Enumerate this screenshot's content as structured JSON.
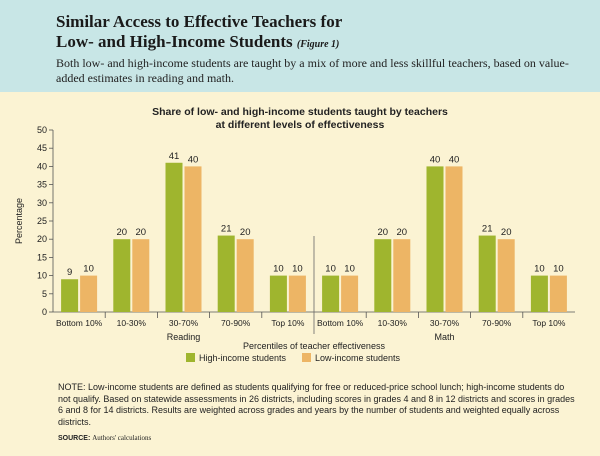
{
  "header": {
    "title_line1": "Similar Access to Effective Teachers for",
    "title_line2": "Low- and High-Income Students",
    "figure_label": "(Figure 1)",
    "subtitle": "Both low- and high-income students are taught by a mix of more and less skillful teachers, based on value-added estimates in reading and math."
  },
  "chart_data": {
    "type": "bar",
    "title_line1": "Share of low- and high-income students taught by teachers",
    "title_line2": "at different levels of effectiveness",
    "ylabel": "Percentage",
    "xlabel": "Percentiles of teacher effectiveness",
    "ylim": [
      0,
      50
    ],
    "yticks": [
      0,
      5,
      10,
      15,
      20,
      25,
      30,
      35,
      40,
      45,
      50
    ],
    "groups": [
      {
        "name": "Reading",
        "categories": [
          "Bottom 10%",
          "10-30%",
          "30-70%",
          "70-90%",
          "Top 10%"
        ]
      },
      {
        "name": "Math",
        "categories": [
          "Bottom 10%",
          "10-30%",
          "30-70%",
          "70-90%",
          "Top 10%"
        ]
      }
    ],
    "series": [
      {
        "name": "High-income students",
        "color": "#9fb52e",
        "values": [
          9,
          20,
          41,
          21,
          10,
          10,
          20,
          40,
          21,
          10
        ]
      },
      {
        "name": "Low-income students",
        "color": "#edb565",
        "values": [
          10,
          20,
          40,
          20,
          10,
          10,
          20,
          40,
          20,
          10
        ]
      }
    ],
    "grid": false,
    "legend": "bottom"
  },
  "note": "NOTE: Low-income students are defined as students qualifying for free or reduced-price school lunch; high-income students do not qualify. Based on statewide assessments in 26 districts, including scores in grades 4 and 8 in 12 districts and scores in grades 6 and 8 for 14 districts. Results are weighted across grades and years by the number of students and weighted equally across districts.",
  "source": {
    "label": "SOURCE:",
    "text": "Authors' calculations"
  }
}
